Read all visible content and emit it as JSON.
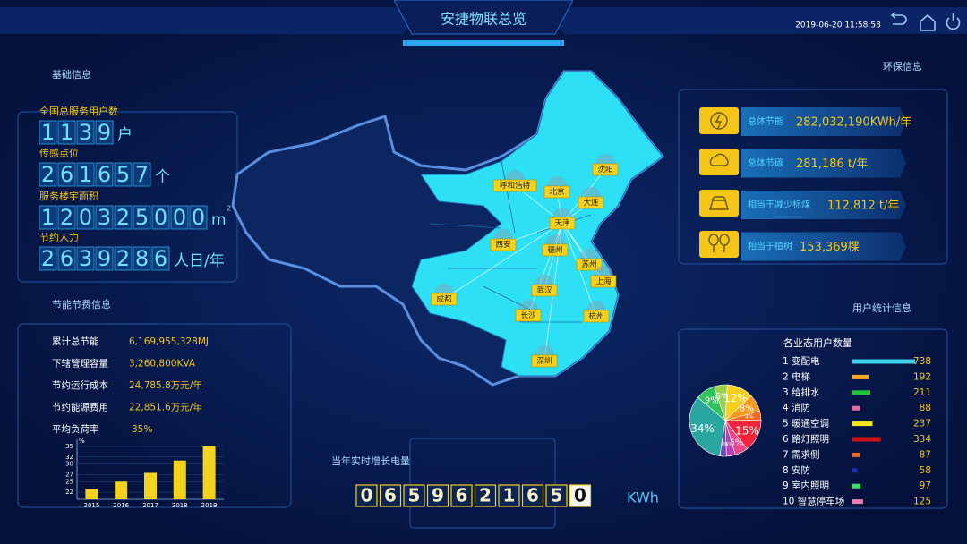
{
  "header": {
    "title": "安捷物联总览",
    "datetime": "2019-06-20 11:58:58"
  },
  "basic_info": {
    "title": "基础信息",
    "items": [
      {
        "label": "全国总服务用户数",
        "digits": "1139",
        "unit": "户"
      },
      {
        "label": "传感点位",
        "digits": "261657",
        "unit": "个"
      },
      {
        "label": "服务楼宇面积",
        "digits": "120325000",
        "unit": "m",
        "unit_sup": "2"
      },
      {
        "label": "节约人力",
        "digits": "2639286",
        "unit": "人日/年"
      }
    ]
  },
  "energy_info": {
    "title": "节能节费信息",
    "rows": [
      {
        "label": "累计总节能",
        "value": "6,169,955,328MJ"
      },
      {
        "label": "下辖管理容量",
        "value": "3,260,800KVA"
      },
      {
        "label": "节约运行成本",
        "value": "24,785.8万元/年"
      },
      {
        "label": "节约能源费用",
        "value": "22,851.6万元/年"
      },
      {
        "label": "平均负荷率",
        "value": "35%"
      }
    ],
    "chart_data": {
      "type": "bar",
      "y_label": "%",
      "categories": [
        "2015",
        "2016",
        "2017",
        "2018",
        "2019"
      ],
      "values": [
        23,
        25,
        27.5,
        31,
        35
      ],
      "color": "#f5d21c",
      "ylim": [
        20,
        36
      ],
      "yticks": [
        22,
        25,
        27,
        30,
        32,
        35
      ],
      "grid": true
    }
  },
  "map": {
    "cities": [
      "呼和浩特",
      "北京",
      "沈阳",
      "大连",
      "天津",
      "西安",
      "德州",
      "苏州",
      "上海",
      "成都",
      "武汉",
      "长沙",
      "杭州",
      "深圳"
    ]
  },
  "meter": {
    "title": "当年实时增长电量",
    "digits": "0659621650",
    "unit": "KWh"
  },
  "env_info": {
    "title": "环保信息",
    "items": [
      {
        "label": "总体节能",
        "value": "282,032,190KWh/年"
      },
      {
        "label": "总体节碳",
        "value": "281,186 t/年"
      },
      {
        "label": "相当于减少标煤",
        "value": "112,812 t/年"
      },
      {
        "label": "相当于植树",
        "value": "153,369棵"
      }
    ]
  },
  "user_stats": {
    "title": "用户统计信息",
    "subtitle": "各业态用户数量",
    "list": {
      "type": "bar",
      "categories": [
        "1 变配电",
        "2 电梯",
        "3 给排水",
        "4 消防",
        "5 暖通空调",
        "6 路灯照明",
        "7 需求侧",
        "8 安防",
        "9 室内照明",
        "10 智慧停车场"
      ],
      "values": [
        738,
        192,
        211,
        88,
        237,
        334,
        87,
        58,
        97,
        125
      ],
      "colors": [
        "#3fd0f0",
        "#f5a623",
        "#1fc43a",
        "#e86ca8",
        "#f7e71c",
        "#d0121b",
        "#f0661c",
        "#1b2fb5",
        "#3ee06a",
        "#ee7fb8"
      ]
    },
    "chart_data": {
      "type": "pie",
      "values": [
        9,
        6,
        12,
        8,
        4,
        15,
        6,
        4,
        3,
        34
      ],
      "value_labels": [
        "9%",
        "6%",
        "12%",
        "8%",
        "4%",
        "15%",
        "6%",
        "4%",
        "3%",
        "34%"
      ],
      "colors": [
        "#2ec25a",
        "#9bd14f",
        "#f7d01c",
        "#f79a1c",
        "#f26b1c",
        "#f2243c",
        "#e8488a",
        "#b83fb0",
        "#6f4ab5",
        "#2aa6a0"
      ]
    }
  }
}
